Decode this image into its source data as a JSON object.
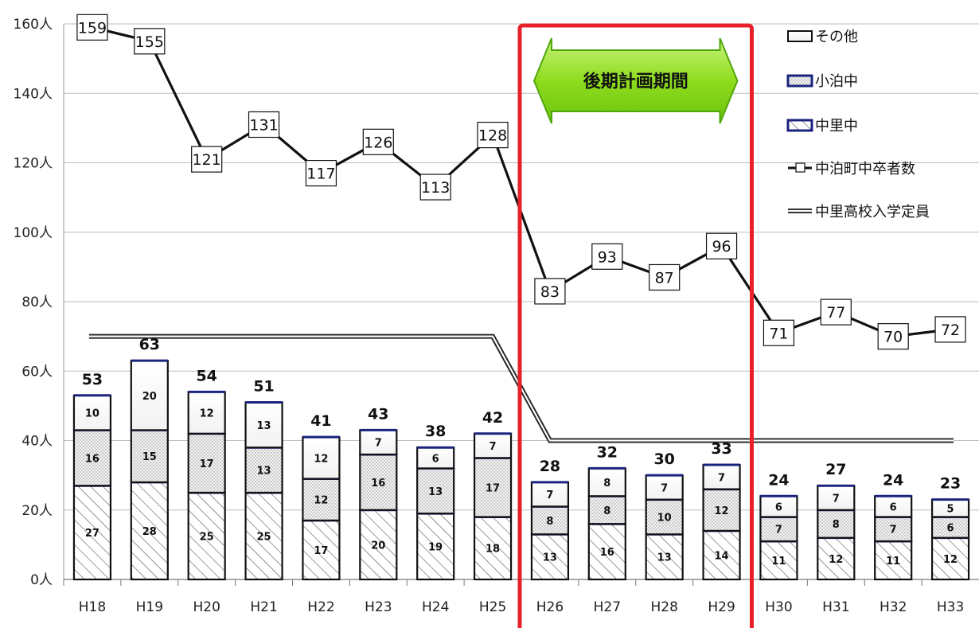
{
  "chart_data": {
    "type": "bar",
    "categories": [
      "H18",
      "H19",
      "H20",
      "H21",
      "H22",
      "H23",
      "H24",
      "H25",
      "H26",
      "H27",
      "H28",
      "H29",
      "H30",
      "H31",
      "H32",
      "H33"
    ],
    "ylim": [
      0,
      160
    ],
    "y_ticks": [
      "0人",
      "20人",
      "40人",
      "60人",
      "80人",
      "100人",
      "120人",
      "140人",
      "160人"
    ],
    "y_tick_values": [
      0,
      20,
      40,
      60,
      80,
      100,
      120,
      140,
      160
    ],
    "grid": true,
    "stacked_series": [
      {
        "name": "中里中",
        "pattern": "hatch",
        "values": [
          27,
          28,
          25,
          25,
          17,
          20,
          19,
          18,
          13,
          16,
          13,
          14,
          11,
          12,
          11,
          12
        ]
      },
      {
        "name": "小泊中",
        "pattern": "dots",
        "values": [
          16,
          15,
          17,
          13,
          12,
          16,
          13,
          17,
          8,
          8,
          10,
          12,
          7,
          8,
          7,
          6
        ]
      },
      {
        "name": "その他",
        "pattern": "plain",
        "values": [
          10,
          20,
          12,
          13,
          12,
          7,
          6,
          7,
          7,
          8,
          7,
          7,
          6,
          7,
          6,
          5
        ]
      }
    ],
    "totals": [
      53,
      63,
      54,
      51,
      41,
      43,
      38,
      42,
      28,
      32,
      30,
      33,
      24,
      27,
      24,
      23
    ],
    "line_series": [
      {
        "name": "中泊町中卒者数",
        "values": [
          159,
          155,
          121,
          131,
          117,
          126,
          113,
          128,
          83,
          93,
          87,
          96,
          71,
          77,
          70,
          72
        ]
      },
      {
        "name": "中里高校入学定員",
        "values": [
          70,
          70,
          70,
          70,
          70,
          70,
          70,
          70,
          40,
          40,
          40,
          40,
          40,
          40,
          40,
          40
        ]
      }
    ],
    "highlight": {
      "text": "後期計画期間",
      "from": "H26",
      "to": "H29",
      "color": "#e8202a"
    },
    "legend": [
      {
        "label": "その他",
        "kind": "plain"
      },
      {
        "label": "小泊中",
        "kind": "dots"
      },
      {
        "label": "中里中",
        "kind": "hatch"
      },
      {
        "label": "中泊町中卒者数",
        "kind": "marker-line"
      },
      {
        "label": "中里高校入学定員",
        "kind": "double-line"
      }
    ],
    "colors": {
      "bar_border": "#111111",
      "seg_divider": "#1a237e",
      "banner_fill": "#8fdc1e",
      "banner_stroke": "#4fa80a"
    }
  }
}
